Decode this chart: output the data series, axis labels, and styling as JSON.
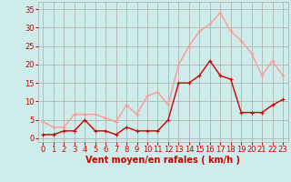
{
  "x": [
    0,
    1,
    2,
    3,
    4,
    5,
    6,
    7,
    8,
    9,
    10,
    11,
    12,
    13,
    14,
    15,
    16,
    17,
    18,
    19,
    20,
    21,
    22,
    23
  ],
  "vent_moyen": [
    1,
    1,
    2,
    2,
    5,
    2,
    2,
    1,
    3,
    2,
    2,
    2,
    5,
    15,
    15,
    17,
    21,
    17,
    16,
    7,
    7,
    7,
    9,
    10.5
  ],
  "rafales": [
    4.5,
    3,
    3,
    6.5,
    6.5,
    6.5,
    5.5,
    4.5,
    9,
    6.5,
    11.5,
    12.5,
    9,
    20,
    25,
    29,
    31,
    34,
    29,
    26.5,
    23,
    17,
    21,
    17
  ],
  "color_moyen": "#cc0000",
  "color_rafales": "#ff9999",
  "bg_color": "#ceecea",
  "grid_color": "#aaaaaa",
  "xlabel": "Vent moyen/en rafales ( km/h )",
  "yticks": [
    0,
    5,
    10,
    15,
    20,
    25,
    30,
    35
  ],
  "xticks": [
    0,
    1,
    2,
    3,
    4,
    5,
    6,
    7,
    8,
    9,
    10,
    11,
    12,
    13,
    14,
    15,
    16,
    17,
    18,
    19,
    20,
    21,
    22,
    23
  ],
  "ylim": [
    -1,
    37
  ],
  "xlim": [
    -0.5,
    23.5
  ],
  "marker_size": 2.5,
  "line_width": 1.0,
  "tick_color": "#cc0000",
  "label_color": "#cc0000",
  "xlabel_fontsize": 7,
  "tick_fontsize": 6
}
